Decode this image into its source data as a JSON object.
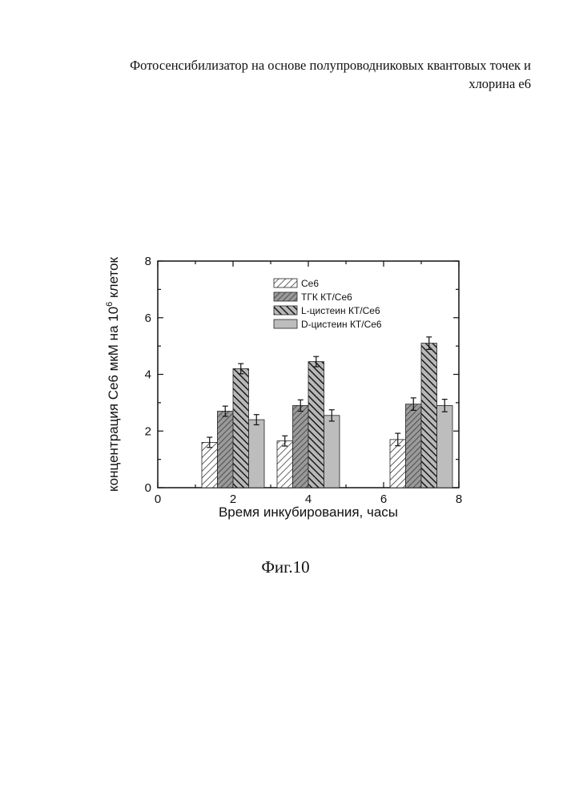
{
  "header": {
    "line1": "Фотосенсибилизатор на основе полупроводниковых квантовых точек и",
    "line2": "хлорина е6"
  },
  "figure_caption": "Фиг.10",
  "chart_data": {
    "type": "bar",
    "x": [
      2,
      4,
      7
    ],
    "xlabel": "Время инкубирования, часы",
    "ylabel_main": "концентрация Се6 мкМ на 10",
    "ylabel_sup": "6",
    "ylabel_tail": " клеток",
    "xlim": [
      0,
      8
    ],
    "ylim": [
      0,
      8
    ],
    "xticks": [
      0,
      2,
      4,
      6,
      8
    ],
    "yticks": [
      0,
      2,
      4,
      6,
      8
    ],
    "legend_position": "top-center",
    "series": [
      {
        "name": "Се6",
        "values": [
          1.6,
          1.65,
          1.7
        ],
        "errors": [
          0.18,
          0.18,
          0.22
        ],
        "pattern": "light-hatch"
      },
      {
        "name": "ТГК КТ/Се6",
        "values": [
          2.7,
          2.9,
          2.95
        ],
        "errors": [
          0.18,
          0.2,
          0.22
        ],
        "pattern": "medium-cross"
      },
      {
        "name": "L-цистеин КТ/Се6",
        "values": [
          4.2,
          4.45,
          5.1
        ],
        "errors": [
          0.18,
          0.18,
          0.22
        ],
        "pattern": "dark-backslash"
      },
      {
        "name": "D-цистеин КТ/Се6",
        "values": [
          2.4,
          2.55,
          2.9
        ],
        "errors": [
          0.18,
          0.2,
          0.22
        ],
        "pattern": "gray-solid"
      }
    ]
  }
}
